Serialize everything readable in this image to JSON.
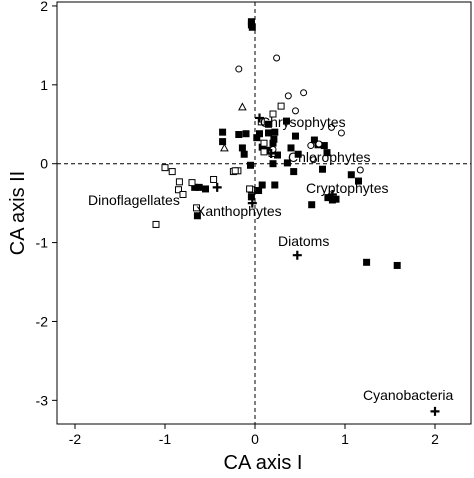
{
  "chart_data": {
    "type": "scatter",
    "title": "",
    "xlabel": "CA axis I",
    "ylabel": "CA axis II",
    "xlim": [
      -2.2,
      2.4
    ],
    "ylim": [
      -3.3,
      2.05
    ],
    "xticks": [
      -2,
      -1,
      0,
      1,
      2
    ],
    "yticks": [
      -3,
      -2,
      -1,
      0,
      1,
      2
    ],
    "xtick_labels": [
      "-2",
      "-1",
      "0",
      "1",
      "2"
    ],
    "ytick_labels": [
      "-3",
      "-2",
      "-1",
      "0",
      "1",
      "2"
    ],
    "reference_lines": {
      "x": 0,
      "y": 0,
      "style": "dashed"
    },
    "grid": false,
    "series": [
      {
        "marker": "filled-square",
        "color": "#000000",
        "points": [
          [
            -0.04,
            1.8
          ],
          [
            -0.04,
            1.76
          ],
          [
            -0.03,
            1.73
          ],
          [
            0.35,
            0.54
          ],
          [
            0.15,
            0.5
          ],
          [
            0.22,
            0.4
          ],
          [
            -0.36,
            0.4
          ],
          [
            -0.18,
            0.37
          ],
          [
            -0.1,
            0.38
          ],
          [
            0.15,
            0.39
          ],
          [
            0.05,
            0.38
          ],
          [
            0.45,
            0.35
          ],
          [
            0.02,
            0.33
          ],
          [
            0.21,
            0.31
          ],
          [
            0.66,
            0.3
          ],
          [
            -0.36,
            0.28
          ],
          [
            0.2,
            0.26
          ],
          [
            0.7,
            0.24
          ],
          [
            0.08,
            0.21
          ],
          [
            0.77,
            0.23
          ],
          [
            0.4,
            0.2
          ],
          [
            0.14,
            0.17
          ],
          [
            0.48,
            0.12
          ],
          [
            0.8,
            0.14
          ],
          [
            0.25,
            0.11
          ],
          [
            -0.12,
            0.12
          ],
          [
            -0.14,
            0.2
          ],
          [
            0.36,
            0.01
          ],
          [
            0.2,
            0.0
          ],
          [
            -0.05,
            -0.02
          ],
          [
            0.43,
            -0.1
          ],
          [
            0.75,
            -0.07
          ],
          [
            1.07,
            -0.14
          ],
          [
            1.15,
            -0.22
          ],
          [
            0.08,
            -0.27
          ],
          [
            0.22,
            -0.27
          ],
          [
            0.04,
            -0.34
          ],
          [
            -0.04,
            -0.42
          ],
          [
            0.81,
            -0.43
          ],
          [
            0.9,
            -0.45
          ],
          [
            0.63,
            -0.52
          ],
          [
            -0.62,
            -0.3
          ],
          [
            -0.67,
            -0.3
          ],
          [
            -0.55,
            -0.32
          ],
          [
            -0.64,
            -0.66
          ],
          [
            1.24,
            -1.25
          ],
          [
            1.58,
            -1.29
          ],
          [
            0.86,
            -0.46
          ]
        ]
      },
      {
        "marker": "open-square",
        "color": "#000000",
        "points": [
          [
            0.2,
            0.63
          ],
          [
            0.29,
            0.73
          ],
          [
            0.07,
            0.53
          ],
          [
            0.1,
            0.26
          ],
          [
            0.19,
            0.13
          ],
          [
            0.1,
            0.15
          ],
          [
            -1.0,
            -0.05
          ],
          [
            -0.92,
            -0.1
          ],
          [
            -0.7,
            -0.24
          ],
          [
            -0.84,
            -0.23
          ],
          [
            -0.46,
            -0.2
          ],
          [
            -0.24,
            -0.1
          ],
          [
            -0.19,
            -0.09
          ],
          [
            -0.22,
            -0.09
          ],
          [
            -0.85,
            -0.33
          ],
          [
            -0.8,
            -0.39
          ],
          [
            -0.65,
            -0.56
          ],
          [
            -1.1,
            -0.77
          ],
          [
            -0.04,
            -0.33
          ],
          [
            -0.06,
            -0.32
          ]
        ]
      },
      {
        "marker": "open-circle",
        "color": "#000000",
        "points": [
          [
            -0.18,
            1.2
          ],
          [
            0.24,
            1.34
          ],
          [
            0.37,
            0.86
          ],
          [
            0.54,
            0.9
          ],
          [
            0.45,
            0.67
          ],
          [
            0.85,
            0.46
          ],
          [
            0.62,
            0.23
          ],
          [
            0.96,
            0.39
          ],
          [
            0.65,
            0.05
          ],
          [
            0.71,
            0.25
          ],
          [
            1.17,
            -0.08
          ],
          [
            0.2,
            0.18
          ]
        ]
      },
      {
        "marker": "open-triangle",
        "color": "#000000",
        "points": [
          [
            -0.14,
            0.72
          ],
          [
            -0.34,
            0.2
          ]
        ]
      }
    ],
    "group_centroids": [
      {
        "label": "Chrysophytes",
        "x": 0.05,
        "y": 0.58
      },
      {
        "label": "Chlorophytes",
        "x": 0.18,
        "y": 0.13
      },
      {
        "label": "Cryptophytes",
        "x": 0.86,
        "y": -0.39
      },
      {
        "label": "Dinoflagellates",
        "x": -0.42,
        "y": -0.3
      },
      {
        "label": "Xanthophytes",
        "x": -0.03,
        "y": -0.5
      },
      {
        "label": "Diatoms",
        "x": 0.47,
        "y": -1.16
      },
      {
        "label": "Cyanobacteria",
        "x": 2.0,
        "y": -3.14
      }
    ]
  }
}
